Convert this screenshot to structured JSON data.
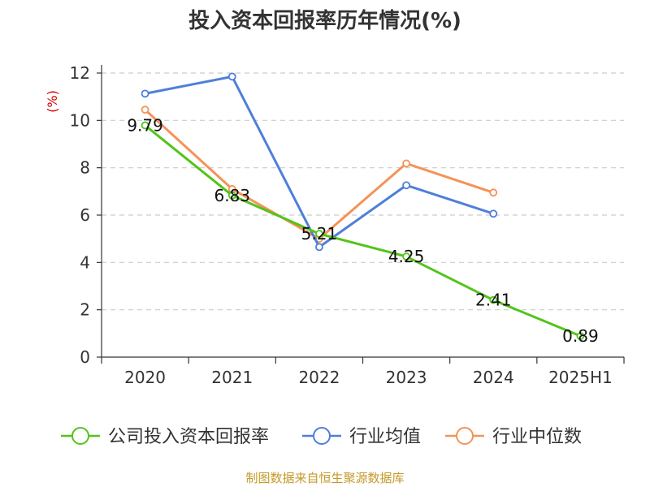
{
  "chart_data": {
    "type": "line",
    "title": "投入资本回报率历年情况(%)",
    "ylabel": "(%)",
    "xlabel": "",
    "categories": [
      "2020",
      "2021",
      "2022",
      "2023",
      "2024",
      "2025H1"
    ],
    "ylim": [
      0,
      12
    ],
    "yticks": [
      0,
      2,
      4,
      6,
      8,
      10,
      12
    ],
    "grid": true,
    "legend_position": "bottom",
    "series": [
      {
        "name": "公司投入资本回报率",
        "color": "#52c41a",
        "values": [
          9.79,
          6.83,
          5.21,
          4.25,
          2.41,
          0.89
        ],
        "show_labels": true
      },
      {
        "name": "行业均值",
        "color": "#4e7fd9",
        "values": [
          11.13,
          11.85,
          4.65,
          7.26,
          6.06,
          null
        ],
        "show_labels": false
      },
      {
        "name": "行业中位数",
        "color": "#f59258",
        "values": [
          10.45,
          7.1,
          5.0,
          8.18,
          6.95,
          null
        ],
        "show_labels": false
      }
    ]
  },
  "source": "制图数据来自恒生聚源数据库"
}
